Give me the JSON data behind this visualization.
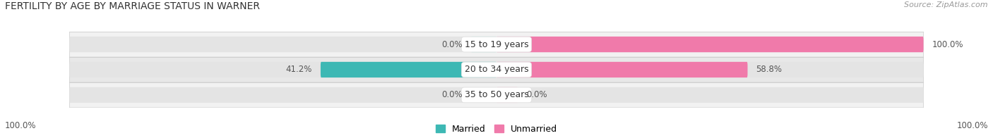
{
  "title": "FERTILITY BY AGE BY MARRIAGE STATUS IN WARNER",
  "source": "Source: ZipAtlas.com",
  "rows": [
    {
      "label": "15 to 19 years",
      "married": 0.0,
      "unmarried": 100.0
    },
    {
      "label": "20 to 34 years",
      "married": 41.2,
      "unmarried": 58.8
    },
    {
      "label": "35 to 50 years",
      "married": 0.0,
      "unmarried": 0.0
    }
  ],
  "married_color": "#3db8b4",
  "unmarried_color": "#f07aaa",
  "unmarried_color_light": "#f5b8d0",
  "bar_bg_color": "#e4e4e4",
  "row_bg_even": "#f2f2f2",
  "row_bg_odd": "#e8e8e8",
  "title_fontsize": 10,
  "source_fontsize": 8,
  "label_fontsize": 9,
  "value_fontsize": 8.5,
  "legend_fontsize": 9,
  "axis_label_left": "100.0%",
  "axis_label_right": "100.0%",
  "bar_height": 0.62,
  "total_width": 100.0
}
